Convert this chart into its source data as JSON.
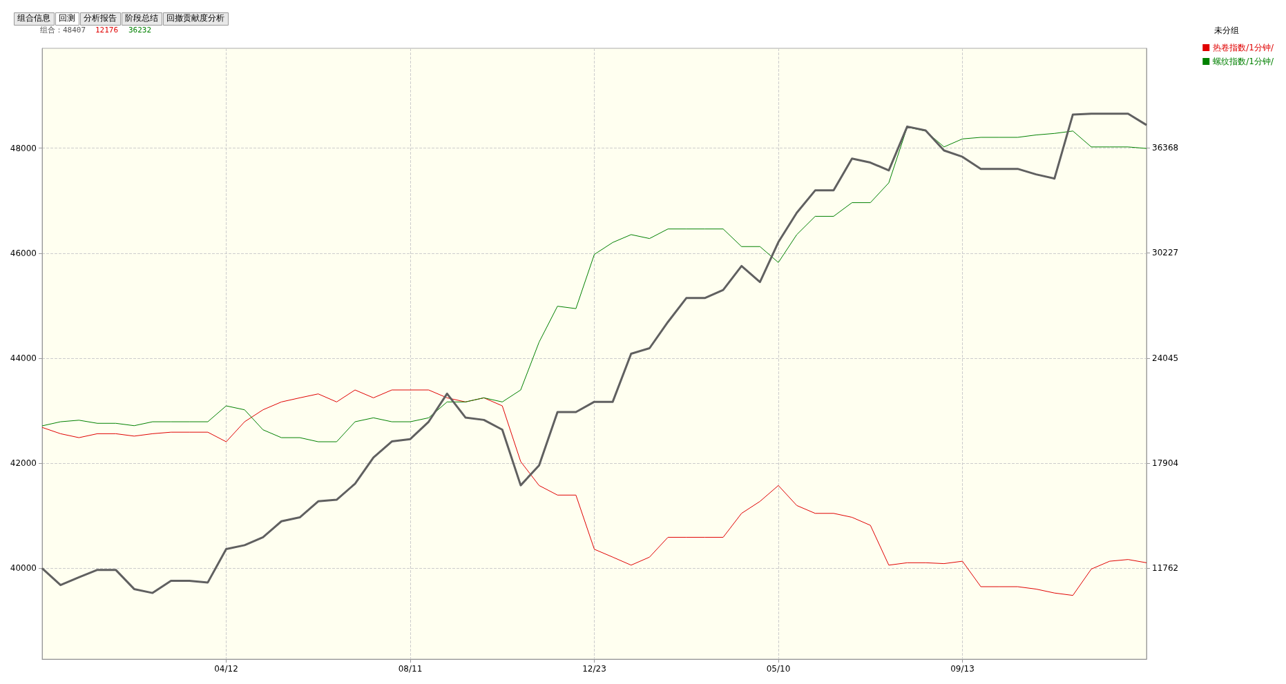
{
  "chart_data": {
    "type": "line",
    "legend_title": "未分组",
    "legend": "top right",
    "grid": true,
    "marker": "none",
    "line_style": "solid",
    "annotations": [
      "组合信息",
      "回测",
      "分析报告",
      "阶段总结",
      "回撤贡献度分析",
      "组合：48407",
      "12176",
      "36232"
    ],
    "categories": [
      null,
      null,
      null,
      null,
      null,
      null,
      null,
      null,
      null,
      null,
      "04/12",
      null,
      null,
      null,
      null,
      null,
      null,
      null,
      null,
      null,
      "08/11",
      null,
      null,
      null,
      null,
      null,
      null,
      null,
      null,
      null,
      "12/23",
      null,
      null,
      null,
      null,
      null,
      null,
      null,
      null,
      null,
      "05/10",
      null,
      null,
      null,
      null,
      null,
      null,
      null,
      null,
      null,
      "09/13",
      null,
      null,
      null,
      null,
      null,
      null,
      null,
      null,
      null,
      null
    ],
    "ylim": [
      38270,
      49900
    ],
    "yticks": [
      40000,
      42000,
      44000,
      46000,
      48000
    ],
    "y2lim": [
      6450,
      42190
    ],
    "y2ticks": [
      11762,
      17904,
      24045,
      30227,
      36368
    ],
    "series": [
      {
        "color": "#606060",
        "values": [
          40000,
          39680,
          39830,
          39970,
          39970,
          39605,
          39530,
          39760,
          39760,
          39730,
          40365,
          40440,
          40590,
          40895,
          40970,
          41275,
          41305,
          41610,
          42110,
          42415,
          42460,
          42790,
          43325,
          42870,
          42825,
          42640,
          41580,
          41960,
          42975,
          42975,
          43170,
          43170,
          44085,
          44190,
          44690,
          45145,
          45145,
          45300,
          45755,
          45450,
          46210,
          46770,
          47195,
          47195,
          47800,
          47725,
          47575,
          48410,
          48335,
          47955,
          47835,
          47605,
          47605,
          47605,
          47500,
          47420,
          48640,
          48655,
          48655,
          48655,
          48440
        ]
      },
      {
        "name": "热卷指数/1分钟/",
        "color": "#e00000",
        "axis": "y2",
        "values": [
          20010,
          19640,
          19410,
          19640,
          19640,
          19500,
          19640,
          19730,
          19730,
          19730,
          19170,
          20340,
          21040,
          21500,
          21740,
          21970,
          21500,
          22200,
          21740,
          22200,
          22200,
          22200,
          21740,
          21500,
          21740,
          21270,
          18010,
          16610,
          16050,
          16050,
          12880,
          12420,
          11950,
          12420,
          13580,
          13580,
          13580,
          13580,
          14980,
          15680,
          16610,
          15440,
          14980,
          14980,
          14750,
          14280,
          11950,
          12090,
          12090,
          12040,
          12180,
          10690,
          10690,
          10690,
          10550,
          10320,
          10180,
          11720,
          12180,
          12280,
          12090
        ]
      },
      {
        "name": "螺纹指数/1分钟/",
        "color": "#008000",
        "axis": "y2",
        "values": [
          20100,
          20340,
          20430,
          20250,
          20250,
          20110,
          20340,
          20340,
          20340,
          20340,
          21270,
          21040,
          19870,
          19410,
          19410,
          19170,
          19170,
          20340,
          20570,
          20340,
          20340,
          20570,
          21500,
          21500,
          21740,
          21500,
          22200,
          25000,
          27100,
          26960,
          30130,
          30830,
          31290,
          31060,
          31620,
          31620,
          31620,
          31620,
          30590,
          30590,
          29660,
          31290,
          32360,
          32360,
          33160,
          33160,
          34320,
          37580,
          37350,
          36420,
          36890,
          36980,
          36980,
          36980,
          37120,
          37210,
          37350,
          36420,
          36420,
          36420,
          36330
        ]
      }
    ]
  }
}
